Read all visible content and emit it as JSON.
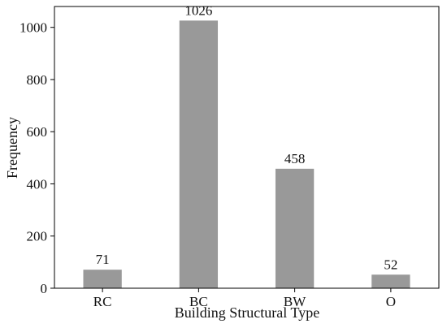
{
  "chart_data": {
    "type": "bar",
    "title": "",
    "xlabel": "Building Structural Type",
    "ylabel": "Frequency",
    "categories": [
      "RC",
      "BC",
      "BW",
      "O"
    ],
    "values": [
      71,
      1026,
      458,
      52
    ],
    "value_labels": [
      "71",
      "1026",
      "458",
      "52"
    ],
    "ylim": [
      0,
      1080
    ],
    "yticks": [
      0,
      200,
      400,
      600,
      800,
      1000
    ],
    "ytick_labels": [
      "0",
      "200",
      "400",
      "600",
      "800",
      "1000"
    ],
    "grid": false,
    "legend": "none",
    "bar_color": "#999999"
  }
}
